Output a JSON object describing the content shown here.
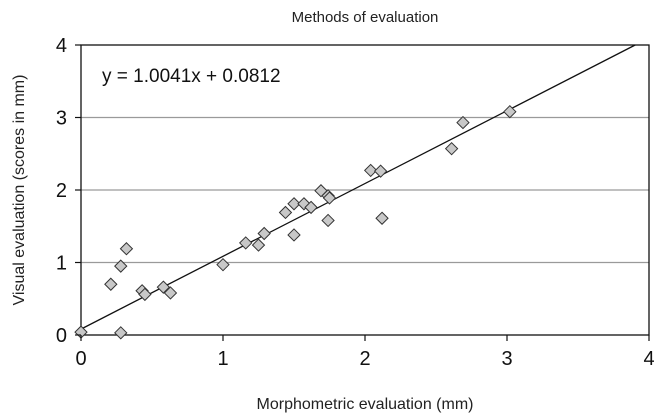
{
  "chart_data": {
    "type": "scatter",
    "title": "Methods of evaluation",
    "xlabel": "Morphometric evaluation (mm)",
    "ylabel": "Visual evaluation (scores in mm)",
    "equation": "y = 1.0041x + 0.0812",
    "xlim": [
      0,
      4
    ],
    "ylim": [
      0,
      4
    ],
    "xticks": [
      "0",
      "1",
      "2",
      "3",
      "4"
    ],
    "yticks": [
      "0",
      "1",
      "2",
      "3",
      "4"
    ],
    "grid": "horizontal",
    "trendline": {
      "slope": 1.0041,
      "intercept": 0.0812
    },
    "marker_color": "#c8c8c8",
    "points": [
      {
        "x": 0.0,
        "y": 0.04
      },
      {
        "x": 0.28,
        "y": 0.03
      },
      {
        "x": 0.21,
        "y": 0.7
      },
      {
        "x": 0.28,
        "y": 0.95
      },
      {
        "x": 0.32,
        "y": 1.19
      },
      {
        "x": 0.43,
        "y": 0.61
      },
      {
        "x": 0.45,
        "y": 0.56
      },
      {
        "x": 0.58,
        "y": 0.66
      },
      {
        "x": 0.63,
        "y": 0.58
      },
      {
        "x": 1.0,
        "y": 0.97
      },
      {
        "x": 1.16,
        "y": 1.27
      },
      {
        "x": 1.25,
        "y": 1.24
      },
      {
        "x": 1.29,
        "y": 1.4
      },
      {
        "x": 1.44,
        "y": 1.69
      },
      {
        "x": 1.5,
        "y": 1.81
      },
      {
        "x": 1.5,
        "y": 1.38
      },
      {
        "x": 1.57,
        "y": 1.81
      },
      {
        "x": 1.62,
        "y": 1.76
      },
      {
        "x": 1.69,
        "y": 1.99
      },
      {
        "x": 1.74,
        "y": 1.92
      },
      {
        "x": 1.75,
        "y": 1.89
      },
      {
        "x": 1.74,
        "y": 1.58
      },
      {
        "x": 2.04,
        "y": 2.27
      },
      {
        "x": 2.11,
        "y": 2.26
      },
      {
        "x": 2.12,
        "y": 1.61
      },
      {
        "x": 2.61,
        "y": 2.57
      },
      {
        "x": 2.69,
        "y": 2.93
      },
      {
        "x": 3.02,
        "y": 3.08
      }
    ]
  }
}
